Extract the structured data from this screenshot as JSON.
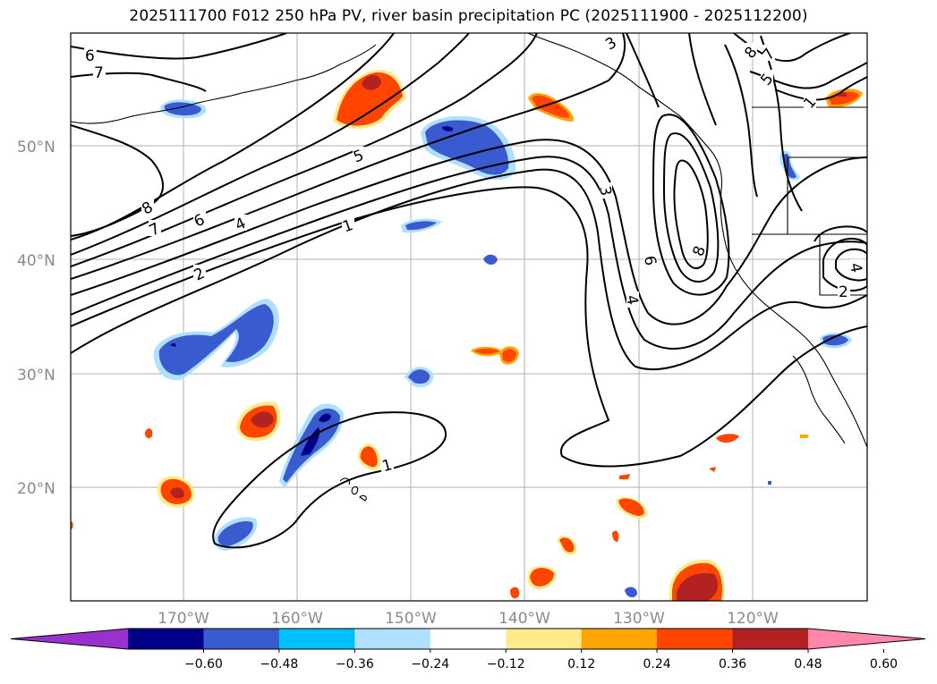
{
  "title": "2025111700 F012 250 hPa PV, river basin precipitation PC (2025111900 - 2025112200)",
  "map": {
    "lat_labels": [
      "50°N",
      "40°N",
      "30°N",
      "20°N"
    ],
    "lon_labels": [
      "170°W",
      "160°W",
      "150°W",
      "140°W",
      "130°W",
      "120°W"
    ],
    "pv_contour_labels": [
      "6",
      "7",
      "8",
      "7",
      "6",
      "4",
      "2",
      "5",
      "1",
      "3",
      "3",
      "4",
      "6",
      "8",
      "8",
      "7",
      "5",
      "1",
      "2",
      "4",
      "1"
    ]
  },
  "colorbar": {
    "colors": [
      "#9932cc",
      "#00008b",
      "#3a5bd0",
      "#00bfff",
      "#b0e0ff",
      "#ffffff",
      "#ffeb8a",
      "#ffa500",
      "#ff4500",
      "#b22222",
      "#ff88aa"
    ],
    "tick_labels": [
      "−0.60",
      "−0.48",
      "−0.36",
      "−0.24",
      "−0.12",
      "0.12",
      "0.24",
      "0.36",
      "0.48",
      "0.60"
    ]
  }
}
